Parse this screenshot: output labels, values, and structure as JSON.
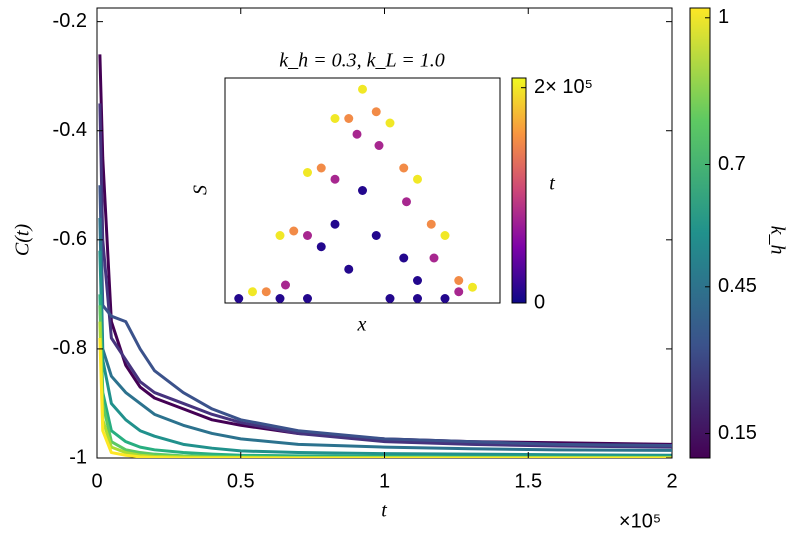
{
  "chart_data": [
    {
      "type": "line",
      "xlabel": "t",
      "ylabel": "C(t)",
      "x_multiplier": "×10⁵",
      "x": [
        0.01,
        0.02,
        0.05,
        0.1,
        0.15,
        0.2,
        0.3,
        0.4,
        0.5,
        0.7,
        1.0,
        1.3,
        1.6,
        2.0
      ],
      "xlim": [
        0,
        2
      ],
      "xticks": [
        0,
        0.5,
        1,
        1.5,
        2
      ],
      "ylim": [
        -1,
        -0.175
      ],
      "yticks": [
        -0.2,
        -0.4,
        -0.6,
        -0.8,
        -1
      ],
      "colorbar": {
        "label": "k_h",
        "clim": [
          0.1,
          1.02
        ],
        "ticks": [
          0.15,
          0.45,
          0.7,
          1
        ]
      },
      "series": [
        {
          "color": "#440154",
          "values": [
            -0.26,
            -0.45,
            -0.75,
            -0.83,
            -0.87,
            -0.89,
            -0.91,
            -0.93,
            -0.94,
            -0.955,
            -0.965,
            -0.97,
            -0.972,
            -0.975
          ]
        },
        {
          "color": "#46337e",
          "values": [
            -0.35,
            -0.6,
            -0.78,
            -0.82,
            -0.86,
            -0.88,
            -0.9,
            -0.92,
            -0.935,
            -0.955,
            -0.97,
            -0.975,
            -0.978,
            -0.98
          ]
        },
        {
          "color": "#3b528b",
          "values": [
            -0.5,
            -0.72,
            -0.74,
            -0.75,
            -0.8,
            -0.84,
            -0.88,
            -0.91,
            -0.93,
            -0.95,
            -0.965,
            -0.97,
            -0.975,
            -0.977
          ]
        },
        {
          "color": "#2c728e",
          "values": [
            -0.56,
            -0.8,
            -0.85,
            -0.88,
            -0.9,
            -0.92,
            -0.94,
            -0.955,
            -0.965,
            -0.975,
            -0.98,
            -0.983,
            -0.985,
            -0.986
          ]
        },
        {
          "color": "#21918c",
          "values": [
            -0.62,
            -0.82,
            -0.9,
            -0.93,
            -0.95,
            -0.96,
            -0.975,
            -0.982,
            -0.987,
            -0.99,
            -0.992,
            -0.993,
            -0.994,
            -0.995
          ]
        },
        {
          "color": "#28ae80",
          "values": [
            -0.7,
            -0.88,
            -0.95,
            -0.97,
            -0.98,
            -0.985,
            -0.99,
            -0.993,
            -0.995,
            -0.996,
            -0.997,
            -0.998,
            -0.998,
            -0.998
          ]
        },
        {
          "color": "#5ec962",
          "values": [
            -0.72,
            -0.9,
            -0.97,
            -0.985,
            -0.99,
            -0.993,
            -0.996,
            -0.997,
            -0.998,
            -0.999,
            -0.999,
            -0.999,
            -0.999,
            -0.999
          ]
        },
        {
          "color": "#addc30",
          "values": [
            -0.75,
            -0.93,
            -0.98,
            -0.99,
            -0.995,
            -0.997,
            -0.998,
            -0.999,
            -0.999,
            -1,
            -1,
            -1,
            -1,
            -1
          ]
        },
        {
          "color": "#fde725",
          "values": [
            -0.78,
            -0.95,
            -0.99,
            -0.995,
            -0.998,
            -0.999,
            -1,
            -1,
            -1,
            -1,
            -1,
            -1,
            -1,
            -1
          ]
        }
      ]
    },
    {
      "type": "scatter",
      "title": "k_h = 0.3, k_L = 1.0",
      "xlabel": "x",
      "ylabel": "S",
      "xlim": [
        0,
        1
      ],
      "ylim": [
        0,
        1
      ],
      "colorbar": {
        "label": "t",
        "clim": [
          0,
          209000
        ],
        "ticks": [
          0,
          {
            "value": 200000,
            "label": "2× 10⁵"
          }
        ]
      },
      "x": [
        0.1,
        0.2,
        0.3,
        0.4,
        0.5,
        0.6,
        0.7,
        0.8,
        0.9,
        0.15,
        0.25,
        0.35,
        0.45,
        0.55,
        0.65,
        0.75,
        0.85,
        0.22,
        0.3,
        0.4,
        0.48,
        0.56,
        0.66,
        0.76,
        0.85,
        0.05,
        0.2,
        0.3,
        0.35,
        0.4,
        0.45,
        0.5,
        0.55,
        0.6,
        0.65,
        0.7,
        0.8,
        0.7
      ],
      "y": [
        0.05,
        0.3,
        0.58,
        0.82,
        0.95,
        0.8,
        0.55,
        0.3,
        0.07,
        0.05,
        0.32,
        0.6,
        0.82,
        0.85,
        0.6,
        0.35,
        0.1,
        0.08,
        0.3,
        0.55,
        0.75,
        0.7,
        0.45,
        0.2,
        0.05,
        0.02,
        0.02,
        0.02,
        0.25,
        0.35,
        0.15,
        0.5,
        0.3,
        0.02,
        0.2,
        0.02,
        0.02,
        0.1
      ],
      "c": [
        200000,
        200000,
        200000,
        200000,
        200000,
        200000,
        200000,
        200000,
        200000,
        150000,
        150000,
        150000,
        150000,
        150000,
        150000,
        150000,
        150000,
        80000,
        80000,
        80000,
        80000,
        80000,
        80000,
        80000,
        80000,
        10000,
        10000,
        10000,
        10000,
        10000,
        10000,
        10000,
        10000,
        10000,
        10000,
        10000,
        10000,
        10000
      ]
    }
  ]
}
